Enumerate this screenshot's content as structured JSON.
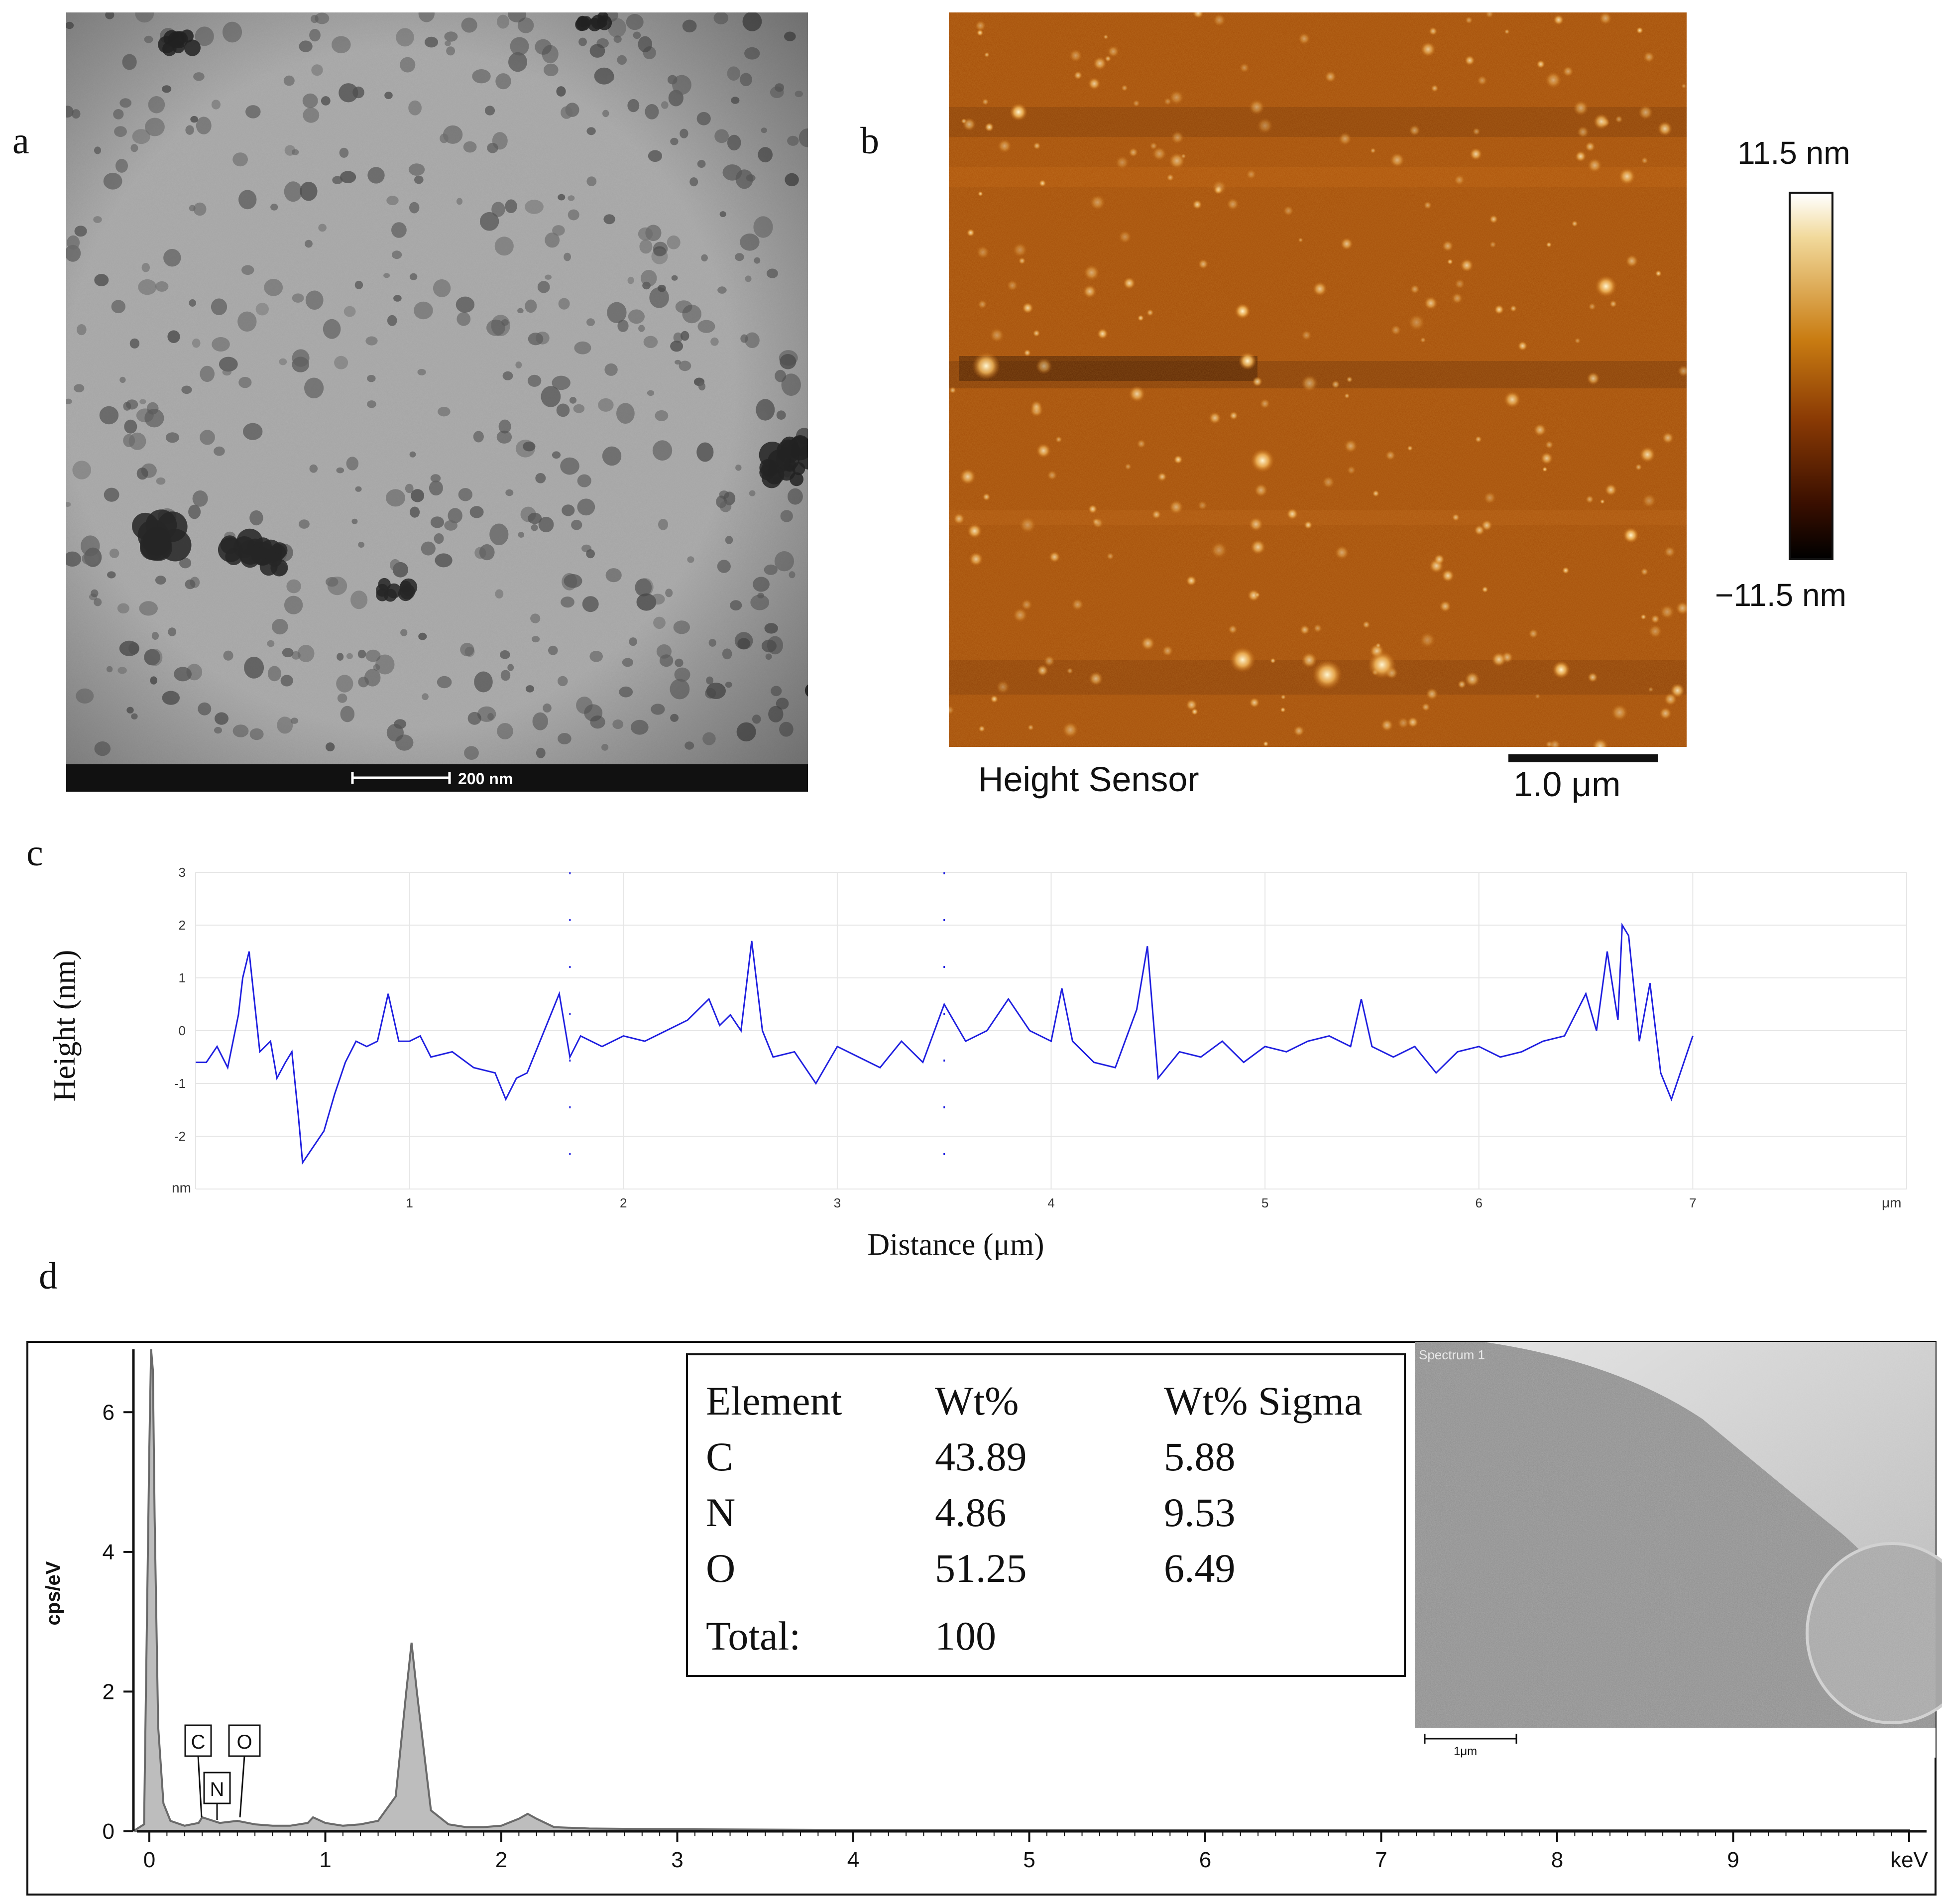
{
  "panels": {
    "a": "a",
    "b": "b",
    "c": "c",
    "d": "d"
  },
  "tem": {
    "scale_bar_label": "200 nm",
    "colors": {
      "background": "#9a9a9a",
      "particle": "#4a4a4a",
      "bar": "#111111"
    }
  },
  "afm": {
    "colorbar_max": "11.5 nm",
    "colorbar_min": "−11.5 nm",
    "channel_label": "Height Sensor",
    "scale_bar_label": "1.0 μm",
    "colors": {
      "base": "#a24d07",
      "bright": "#fff4c8",
      "dark": "#3a1500"
    }
  },
  "profile": {
    "ylabel": "Height (nm)",
    "xlabel": "Distance (μm)",
    "y_unit": "nm",
    "x_unit": "μm",
    "y_ticks": [
      "3",
      "2",
      "1",
      "0",
      "-1",
      "-2"
    ],
    "x_ticks": [
      "1",
      "2",
      "3",
      "4",
      "5",
      "6",
      "7"
    ],
    "line_color": "#2020e0"
  },
  "chart_data": [
    {
      "type": "line",
      "title": "",
      "xlabel": "Distance (μm)",
      "ylabel": "Height (nm)",
      "xlim": [
        0,
        8
      ],
      "ylim": [
        -3,
        3
      ],
      "grid": true,
      "x": [
        0.0,
        0.05,
        0.1,
        0.15,
        0.2,
        0.22,
        0.25,
        0.3,
        0.35,
        0.38,
        0.42,
        0.45,
        0.48,
        0.5,
        0.55,
        0.6,
        0.65,
        0.7,
        0.75,
        0.8,
        0.85,
        0.9,
        0.95,
        1.0,
        1.05,
        1.1,
        1.2,
        1.3,
        1.4,
        1.45,
        1.5,
        1.55,
        1.6,
        1.65,
        1.7,
        1.75,
        1.8,
        1.9,
        2.0,
        2.1,
        2.2,
        2.3,
        2.4,
        2.45,
        2.5,
        2.55,
        2.6,
        2.65,
        2.7,
        2.8,
        2.9,
        3.0,
        3.1,
        3.2,
        3.3,
        3.4,
        3.5,
        3.6,
        3.7,
        3.8,
        3.9,
        4.0,
        4.05,
        4.1,
        4.2,
        4.3,
        4.4,
        4.45,
        4.5,
        4.6,
        4.7,
        4.8,
        4.9,
        5.0,
        5.1,
        5.2,
        5.3,
        5.4,
        5.45,
        5.5,
        5.6,
        5.7,
        5.8,
        5.9,
        6.0,
        6.1,
        6.2,
        6.3,
        6.4,
        6.5,
        6.55,
        6.6,
        6.65,
        6.67,
        6.7,
        6.75,
        6.8,
        6.85,
        6.9,
        6.95,
        7.0
      ],
      "y": [
        -0.6,
        -0.6,
        -0.3,
        -0.7,
        0.3,
        1.0,
        1.5,
        -0.4,
        -0.2,
        -0.9,
        -0.6,
        -0.4,
        -1.6,
        -2.5,
        -2.2,
        -1.9,
        -1.2,
        -0.6,
        -0.2,
        -0.3,
        -0.2,
        0.7,
        -0.2,
        -0.2,
        -0.1,
        -0.5,
        -0.4,
        -0.7,
        -0.8,
        -1.3,
        -0.9,
        -0.8,
        -0.3,
        0.2,
        0.7,
        -0.5,
        -0.1,
        -0.3,
        -0.1,
        -0.2,
        0.0,
        0.2,
        0.6,
        0.1,
        0.3,
        0.0,
        1.7,
        0.0,
        -0.5,
        -0.4,
        -1.0,
        -0.3,
        -0.5,
        -0.7,
        -0.2,
        -0.6,
        0.5,
        -0.2,
        0.0,
        0.6,
        0.0,
        -0.2,
        0.8,
        -0.2,
        -0.6,
        -0.7,
        0.4,
        1.6,
        -0.9,
        -0.4,
        -0.5,
        -0.2,
        -0.6,
        -0.3,
        -0.4,
        -0.2,
        -0.1,
        -0.3,
        0.6,
        -0.3,
        -0.5,
        -0.3,
        -0.8,
        -0.4,
        -0.3,
        -0.5,
        -0.4,
        -0.2,
        -0.1,
        0.7,
        0.0,
        1.5,
        0.2,
        2.0,
        1.8,
        -0.2,
        0.9,
        -0.8,
        -1.3,
        -0.7,
        -0.1
      ]
    },
    {
      "type": "area",
      "title": "",
      "xlabel": "keV",
      "ylabel": "cps/eV",
      "xlim": [
        -0.1,
        10.0
      ],
      "ylim": [
        0,
        6.9
      ],
      "grid": false,
      "x_ticks": [
        "0",
        "1",
        "2",
        "3",
        "4",
        "5",
        "6",
        "7",
        "8",
        "9",
        "keV"
      ],
      "y_ticks": [
        "6",
        "4",
        "2",
        "0"
      ],
      "peak_labels": [
        "C",
        "N",
        "O"
      ],
      "x": [
        -0.08,
        -0.03,
        0.0,
        0.01,
        0.02,
        0.03,
        0.05,
        0.08,
        0.12,
        0.2,
        0.28,
        0.3,
        0.4,
        0.5,
        0.6,
        0.7,
        0.8,
        0.9,
        0.93,
        1.0,
        1.1,
        1.2,
        1.3,
        1.4,
        1.46,
        1.49,
        1.52,
        1.6,
        1.7,
        1.8,
        1.9,
        2.0,
        2.1,
        2.15,
        2.2,
        2.3,
        2.5,
        3.0,
        4.0,
        5.0,
        6.0,
        7.0,
        8.0,
        9.0,
        10.0
      ],
      "y": [
        0.02,
        0.1,
        5.5,
        6.9,
        6.6,
        4.5,
        1.5,
        0.4,
        0.15,
        0.08,
        0.12,
        0.2,
        0.12,
        0.15,
        0.1,
        0.08,
        0.08,
        0.12,
        0.2,
        0.12,
        0.08,
        0.1,
        0.15,
        0.5,
        2.0,
        2.7,
        2.0,
        0.3,
        0.1,
        0.06,
        0.06,
        0.08,
        0.18,
        0.25,
        0.18,
        0.06,
        0.04,
        0.03,
        0.02,
        0.02,
        0.02,
        0.02,
        0.02,
        0.02,
        0.02
      ],
      "fill_color": "#bdbdbd",
      "line_color": "#6a6a6a"
    }
  ],
  "eds": {
    "table": {
      "headers": [
        "Element",
        "Wt%",
        "Wt% Sigma"
      ],
      "rows": [
        [
          "C",
          "43.89",
          "5.88"
        ],
        [
          "N",
          "4.86",
          "9.53"
        ],
        [
          "O",
          "51.25",
          "6.49"
        ]
      ],
      "total_label": "Total:",
      "total_value": "100"
    },
    "sem_title": "Spectrum 1",
    "sem_scale_label": "1μm"
  }
}
